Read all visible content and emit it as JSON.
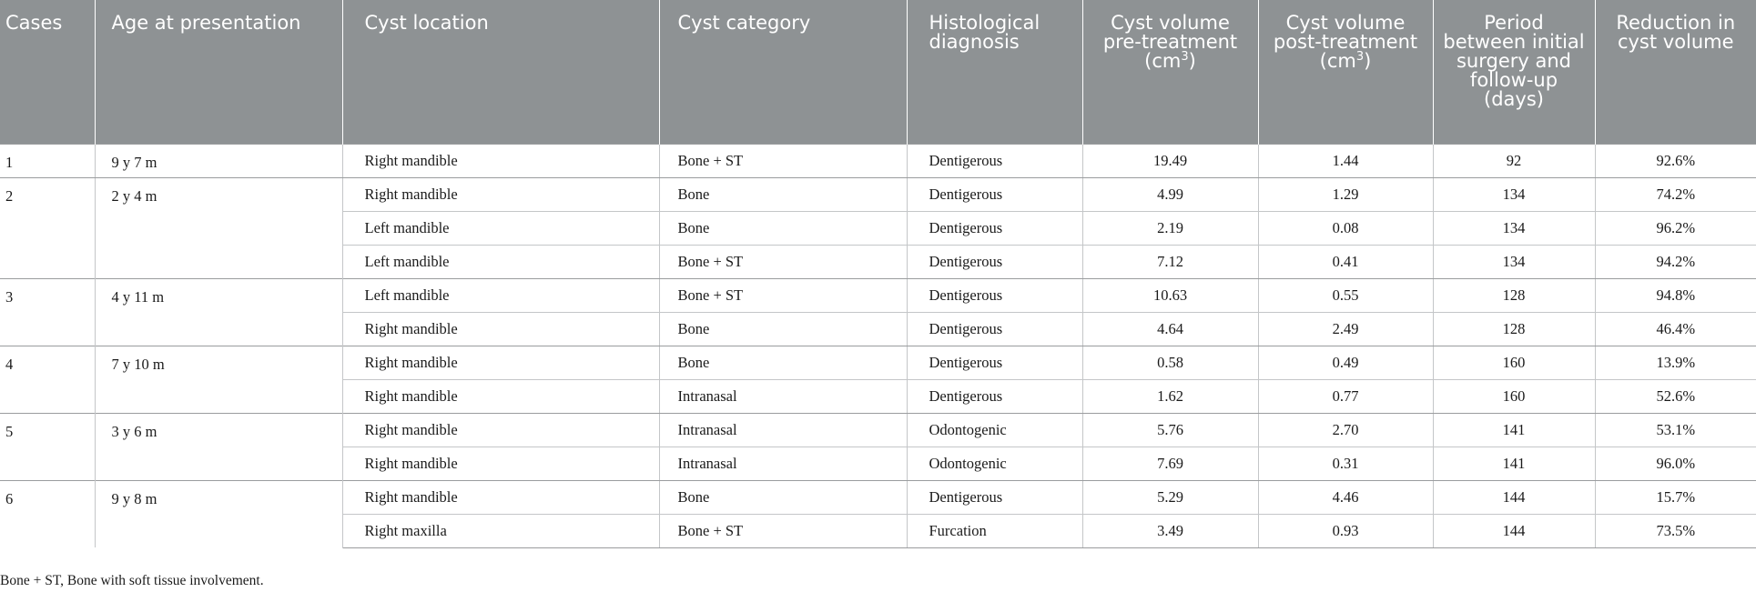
{
  "headers": {
    "cases": "Cases",
    "age": "Age at presentation",
    "location": "Cyst location",
    "category": "Cyst category",
    "histology": "Histological diagnosis",
    "vol_pre": "Cyst volume pre-treatment (cm",
    "vol_pre_sup": "3",
    "vol_pre_close": ")",
    "vol_post": "Cyst volume post-treatment (cm",
    "vol_post_sup": "3",
    "vol_post_close": ")",
    "period": "Period between initial surgery and follow-up (days)",
    "reduction": "Reduction in cyst volume"
  },
  "cases": [
    {
      "case": "1",
      "age": "9 y 7 m",
      "rows": [
        {
          "location": "Right mandible",
          "category": "Bone + ST",
          "histology": "Dentigerous",
          "pre": "19.49",
          "post": "1.44",
          "period": "92",
          "reduction": "92.6%"
        }
      ]
    },
    {
      "case": "2",
      "age": "2 y 4 m",
      "rows": [
        {
          "location": "Right mandible",
          "category": "Bone",
          "histology": "Dentigerous",
          "pre": "4.99",
          "post": "1.29",
          "period": "134",
          "reduction": "74.2%"
        },
        {
          "location": "Left mandible",
          "category": "Bone",
          "histology": "Dentigerous",
          "pre": "2.19",
          "post": "0.08",
          "period": "134",
          "reduction": "96.2%"
        },
        {
          "location": "Left mandible",
          "category": "Bone + ST",
          "histology": "Dentigerous",
          "pre": "7.12",
          "post": "0.41",
          "period": "134",
          "reduction": "94.2%"
        }
      ]
    },
    {
      "case": "3",
      "age": "4 y 11 m",
      "rows": [
        {
          "location": "Left mandible",
          "category": "Bone + ST",
          "histology": "Dentigerous",
          "pre": "10.63",
          "post": "0.55",
          "period": "128",
          "reduction": "94.8%"
        },
        {
          "location": "Right mandible",
          "category": "Bone",
          "histology": "Dentigerous",
          "pre": "4.64",
          "post": "2.49",
          "period": "128",
          "reduction": "46.4%"
        }
      ]
    },
    {
      "case": "4",
      "age": "7 y 10 m",
      "rows": [
        {
          "location": "Right mandible",
          "category": "Bone",
          "histology": "Dentigerous",
          "pre": "0.58",
          "post": "0.49",
          "period": "160",
          "reduction": "13.9%"
        },
        {
          "location": "Right mandible",
          "category": "Intranasal",
          "histology": "Dentigerous",
          "pre": "1.62",
          "post": "0.77",
          "period": "160",
          "reduction": "52.6%"
        }
      ]
    },
    {
      "case": "5",
      "age": "3 y 6 m",
      "rows": [
        {
          "location": "Right mandible",
          "category": "Intranasal",
          "histology": "Odontogenic",
          "pre": "5.76",
          "post": "2.70",
          "period": "141",
          "reduction": "53.1%"
        },
        {
          "location": "Right mandible",
          "category": "Intranasal",
          "histology": "Odontogenic",
          "pre": "7.69",
          "post": "0.31",
          "period": "141",
          "reduction": "96.0%"
        }
      ]
    },
    {
      "case": "6",
      "age": "9 y 8 m",
      "rows": [
        {
          "location": "Right mandible",
          "category": "Bone",
          "histology": "Dentigerous",
          "pre": "5.29",
          "post": "4.46",
          "period": "144",
          "reduction": "15.7%"
        },
        {
          "location": "Right maxilla",
          "category": "Bone + ST",
          "histology": "Furcation",
          "pre": "3.49",
          "post": "0.93",
          "period": "144",
          "reduction": "73.5%"
        }
      ]
    }
  ],
  "footnote": "Bone + ST, Bone with soft tissue involvement.",
  "colors": {
    "header_bg": "#8e9294",
    "header_text": "#ffffff",
    "rule": "#c4c6c8"
  }
}
